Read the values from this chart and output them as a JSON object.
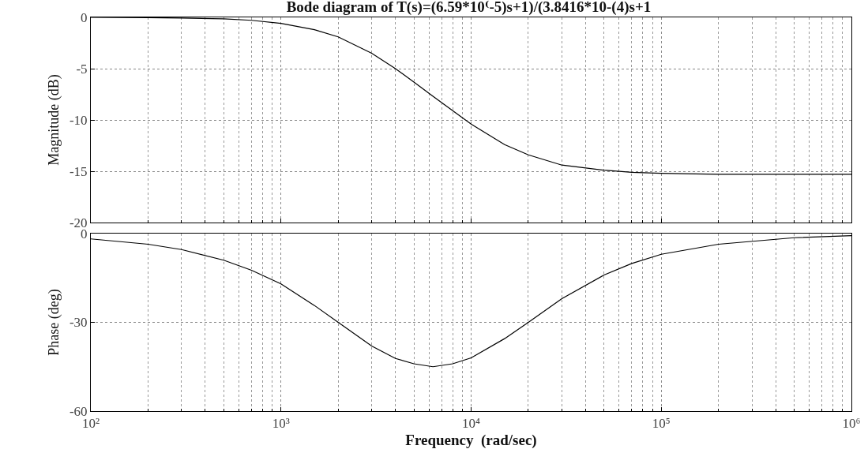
{
  "chart_data": [
    {
      "type": "line",
      "title": "Bode diagram of T(s)=(6.59*10⁽-5)s+1)/(3.8416*10-(4)s+1",
      "ylabel": "Magnitude (dB)",
      "x": [
        100,
        200,
        300,
        500,
        700,
        1000,
        1500,
        2000,
        3000,
        4000,
        5000,
        6300,
        8000,
        10000,
        15000,
        20000,
        30000,
        50000,
        70000,
        100000,
        200000,
        500000,
        1000000
      ],
      "series": [
        {
          "color": "#000000",
          "values": [
            0,
            -0.03,
            -0.06,
            -0.15,
            -0.29,
            -0.58,
            -1.2,
            -1.9,
            -3.5,
            -5,
            -6.3,
            -7.7,
            -9.1,
            -10.4,
            -12.4,
            -13.4,
            -14.4,
            -14.9,
            -15.1,
            -15.2,
            -15.3,
            -15.3,
            -15.3
          ]
        }
      ],
      "log": "x",
      "xlim": [
        100,
        1000000
      ],
      "xticks": [
        100,
        1000,
        10000,
        100000,
        1000000
      ],
      "ylim": [
        -20,
        0
      ],
      "yticks": [
        -20,
        -15,
        -10,
        -5,
        0
      ],
      "grid": true,
      "tick_labels": "y",
      "marker": "none",
      "line_style": "solid"
    },
    {
      "type": "line",
      "xlabel": "Frequency  (rad/sec)",
      "ylabel": "Phase (deg)",
      "x": [
        100,
        200,
        300,
        500,
        700,
        1000,
        1500,
        2000,
        3000,
        4000,
        5000,
        6300,
        8000,
        10000,
        15000,
        20000,
        30000,
        50000,
        70000,
        100000,
        200000,
        500000,
        1000000
      ],
      "series": [
        {
          "color": "#000000",
          "values": [
            -1.8,
            -3.6,
            -5.4,
            -9,
            -12.4,
            -17,
            -24.3,
            -30,
            -38,
            -42.2,
            -44,
            -45,
            -44,
            -42,
            -35.5,
            -30,
            -22,
            -14,
            -10.1,
            -7,
            -3.6,
            -1.4,
            -0.7
          ]
        }
      ],
      "log": "x",
      "xlim": [
        100,
        1000000
      ],
      "xticks": [
        {
          "value": 100,
          "label": "10²"
        },
        {
          "value": 1000,
          "label": "10³"
        },
        {
          "value": 10000,
          "label": "10⁴"
        },
        {
          "value": 100000,
          "label": "10⁵"
        },
        {
          "value": 1000000,
          "label": "10⁶"
        }
      ],
      "ylim": [
        -60,
        0
      ],
      "yticks": [
        -60,
        -30,
        0
      ],
      "grid": true,
      "marker": "none",
      "line_style": "solid"
    }
  ]
}
